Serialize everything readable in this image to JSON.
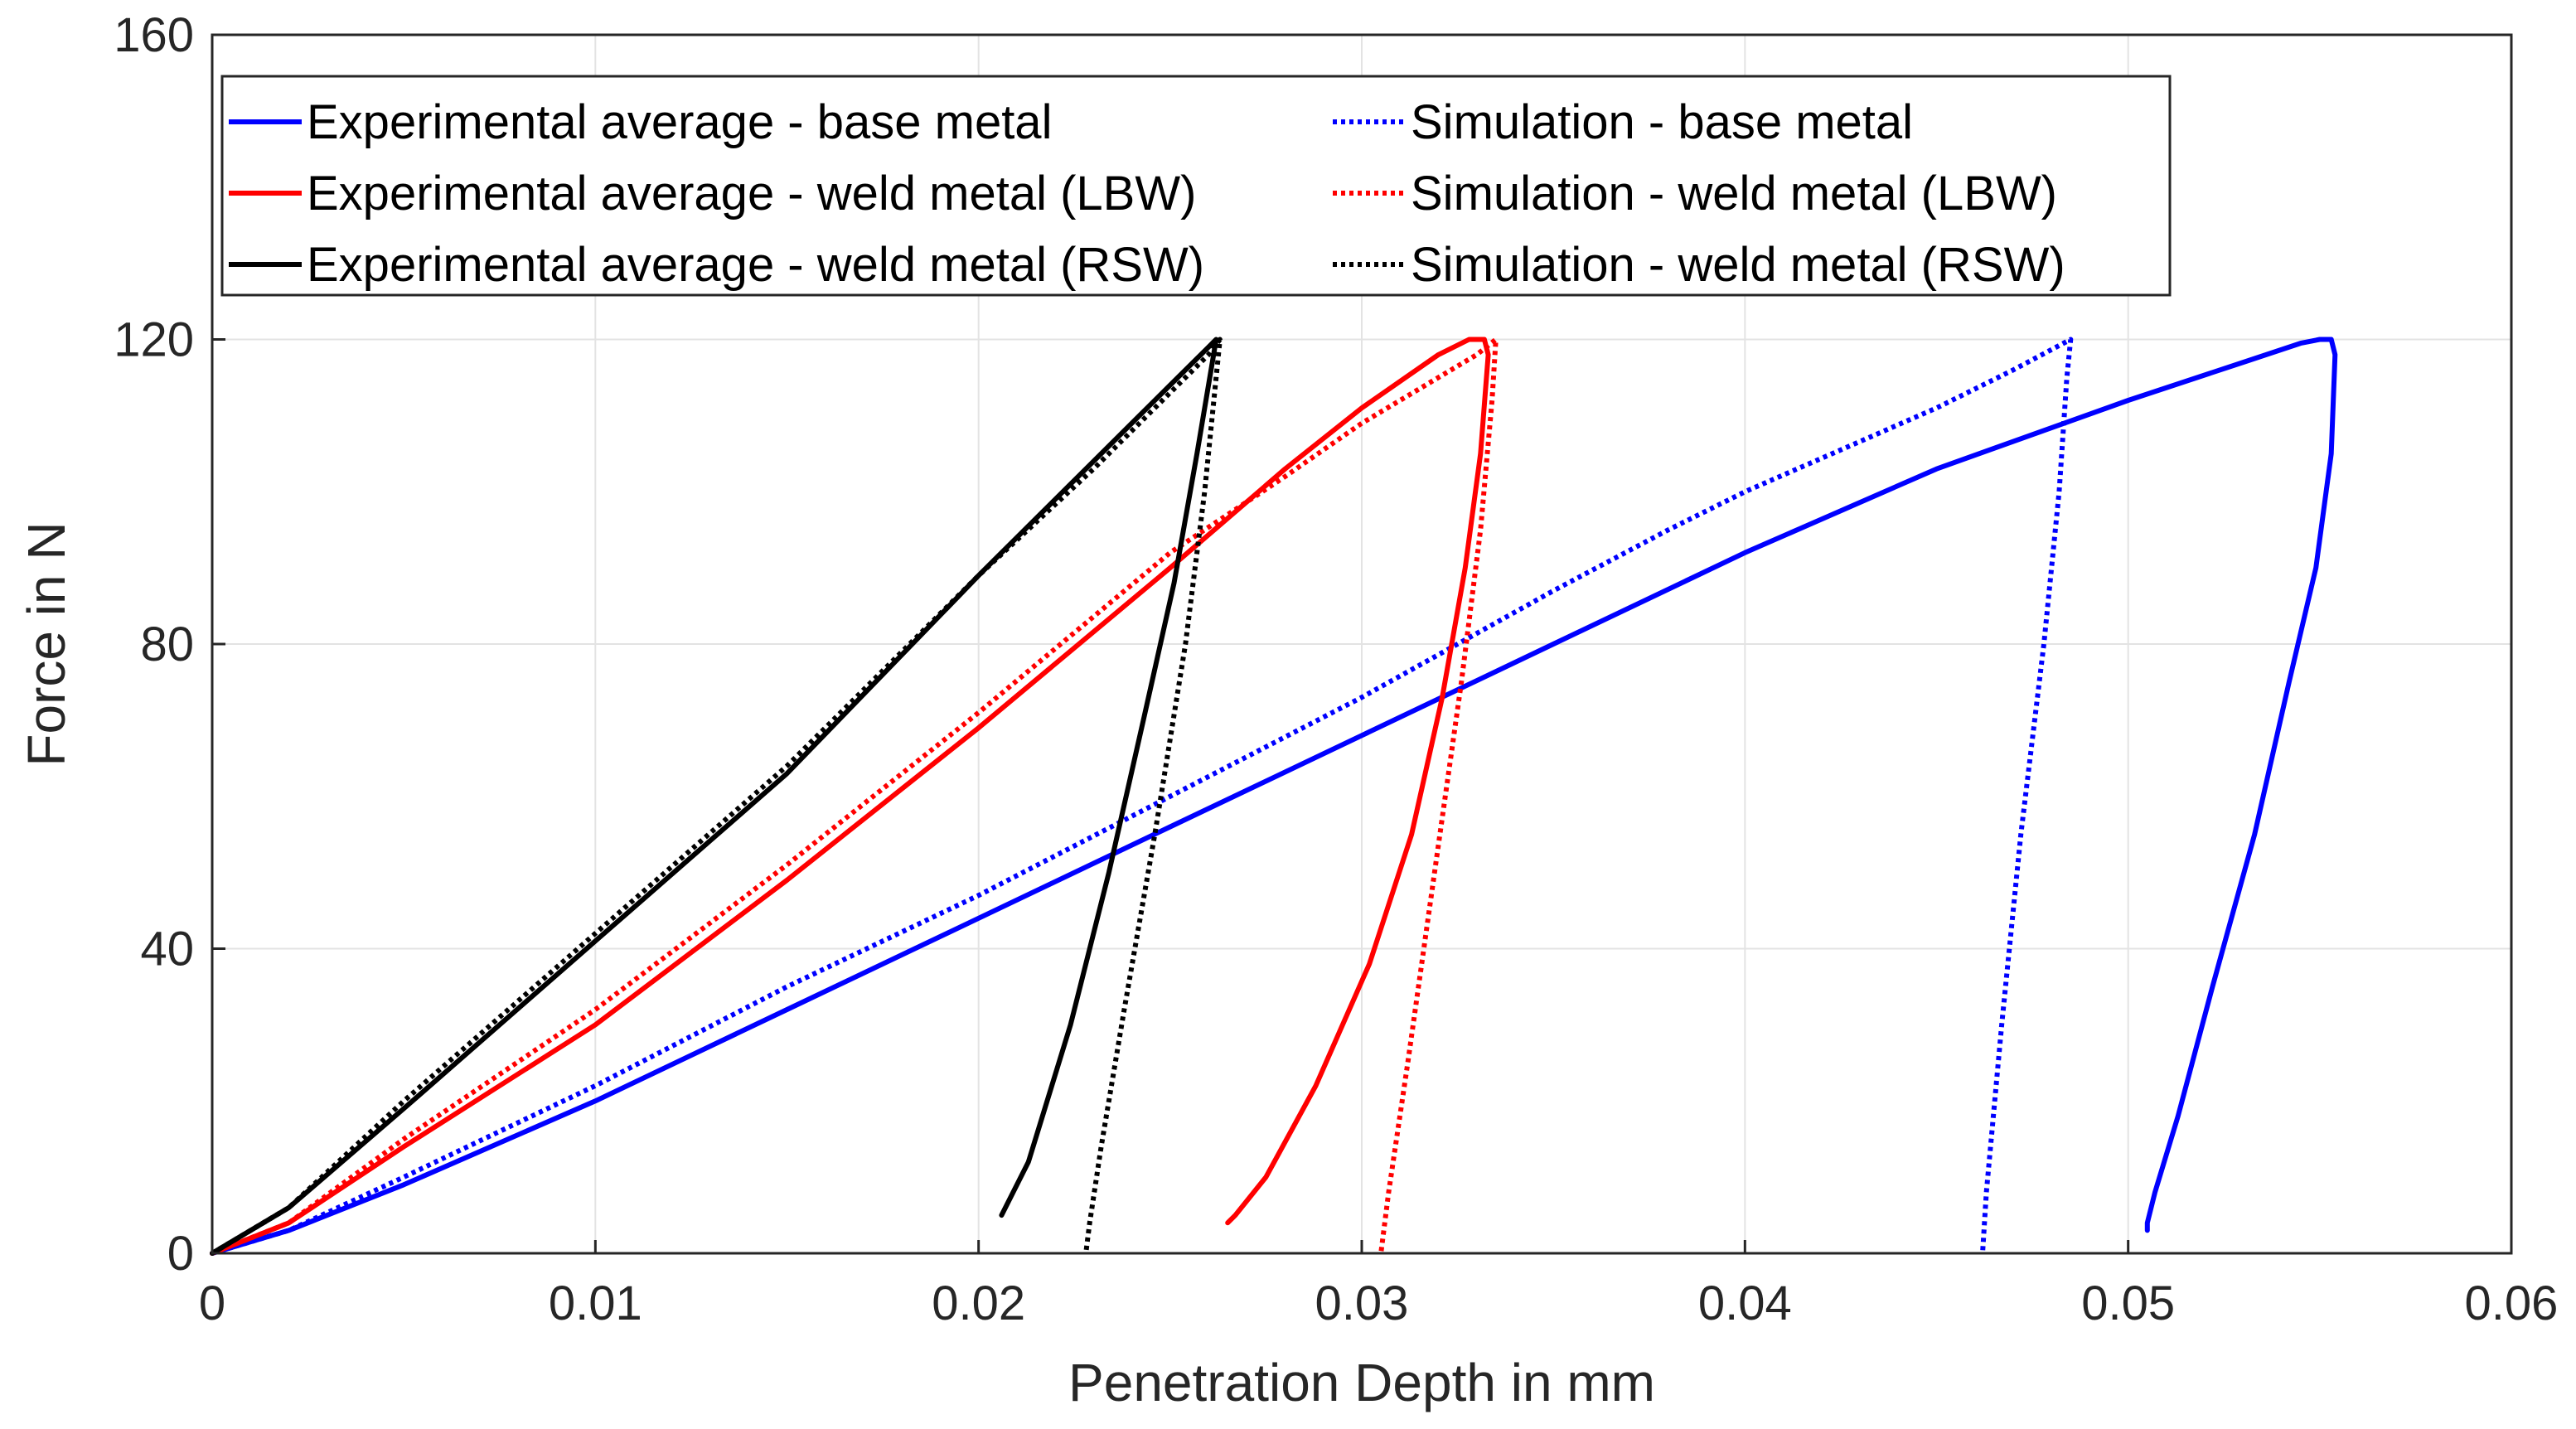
{
  "chart_data": {
    "type": "line",
    "title": "",
    "xlabel": "Penetration Depth in mm",
    "ylabel": "Force in N",
    "xlim": [
      0,
      0.06
    ],
    "ylim": [
      0,
      160
    ],
    "xticks": [
      0,
      0.01,
      0.02,
      0.03,
      0.04,
      0.05,
      0.06
    ],
    "xtick_labels": [
      "0",
      "0.01",
      "0.02",
      "0.03",
      "0.04",
      "0.05",
      "0.06"
    ],
    "yticks": [
      0,
      40,
      80,
      120,
      160
    ],
    "ytick_labels": [
      "0",
      "40",
      "80",
      "120",
      "160"
    ],
    "grid": true,
    "legend_position": "top-left",
    "legend_columns": 2,
    "series": [
      {
        "name": "Experimental average - base metal",
        "color": "#0000ff",
        "style": "solid",
        "x": [
          0,
          0.002,
          0.005,
          0.01,
          0.015,
          0.02,
          0.025,
          0.03,
          0.035,
          0.04,
          0.045,
          0.05,
          0.053,
          0.0545,
          0.055,
          0.0553,
          0.0554,
          0.0553,
          0.0549,
          0.0542,
          0.0533,
          0.0522,
          0.0513,
          0.0507,
          0.0505,
          0.0505
        ],
        "y": [
          0,
          3,
          9,
          20,
          32,
          44,
          56,
          68,
          80,
          92,
          103,
          112,
          117,
          119.5,
          120,
          120,
          118,
          105,
          90,
          75,
          55,
          35,
          18,
          8,
          4,
          3
        ]
      },
      {
        "name": "Simulation - base metal",
        "color": "#0000ff",
        "style": "dotted",
        "x": [
          0,
          0.002,
          0.005,
          0.01,
          0.015,
          0.02,
          0.025,
          0.03,
          0.035,
          0.038,
          0.04,
          0.045,
          0.047,
          0.0485,
          0.0484,
          0.0482,
          0.0478,
          0.0472,
          0.0467,
          0.0463,
          0.0462
        ],
        "y": [
          0,
          3,
          10,
          22,
          35,
          47,
          60,
          73,
          87,
          95,
          100,
          111,
          116,
          120,
          115,
          100,
          80,
          55,
          30,
          8,
          0
        ]
      },
      {
        "name": "Experimental average - weld metal (LBW)",
        "color": "#ff0000",
        "style": "solid",
        "x": [
          0,
          0.002,
          0.005,
          0.01,
          0.015,
          0.02,
          0.025,
          0.028,
          0.03,
          0.032,
          0.0328,
          0.0332,
          0.0333,
          0.0331,
          0.0327,
          0.0321,
          0.0313,
          0.0302,
          0.0288,
          0.0275,
          0.0267,
          0.0265
        ],
        "y": [
          0,
          4,
          14,
          30,
          49,
          69,
          90,
          103,
          111,
          118,
          120,
          120,
          118,
          105,
          90,
          73,
          55,
          38,
          22,
          10,
          5,
          4
        ]
      },
      {
        "name": "Simulation - weld metal (LBW)",
        "color": "#ff0000",
        "style": "dotted",
        "x": [
          0,
          0.002,
          0.005,
          0.01,
          0.015,
          0.02,
          0.025,
          0.028,
          0.03,
          0.032,
          0.033,
          0.0335,
          0.0334,
          0.0331,
          0.0326,
          0.0319,
          0.0312,
          0.0307,
          0.0305
        ],
        "y": [
          0,
          4,
          15,
          32,
          51,
          71,
          92,
          102,
          109,
          115,
          118,
          120,
          112,
          95,
          75,
          50,
          25,
          8,
          0
        ]
      },
      {
        "name": "Experimental average - weld metal (RSW)",
        "color": "#000000",
        "style": "solid",
        "x": [
          0,
          0.002,
          0.005,
          0.01,
          0.015,
          0.02,
          0.023,
          0.025,
          0.026,
          0.0262,
          0.0261,
          0.0257,
          0.0251,
          0.0243,
          0.0234,
          0.0224,
          0.0213,
          0.0206
        ],
        "y": [
          0,
          6,
          19,
          41,
          63,
          89,
          104,
          114,
          119,
          120,
          117,
          105,
          88,
          70,
          50,
          30,
          12,
          5
        ]
      },
      {
        "name": "Simulation - weld metal (RSW)",
        "color": "#000000",
        "style": "dotted",
        "x": [
          0,
          0.002,
          0.005,
          0.01,
          0.015,
          0.02,
          0.023,
          0.025,
          0.026,
          0.0263,
          0.0262,
          0.0259,
          0.0254,
          0.0246,
          0.0238,
          0.0232,
          0.0229,
          0.0228
        ],
        "y": [
          0,
          6,
          20,
          42,
          64,
          89,
          103,
          113,
          118,
          120,
          115,
          100,
          80,
          55,
          32,
          14,
          4,
          0
        ]
      }
    ]
  }
}
